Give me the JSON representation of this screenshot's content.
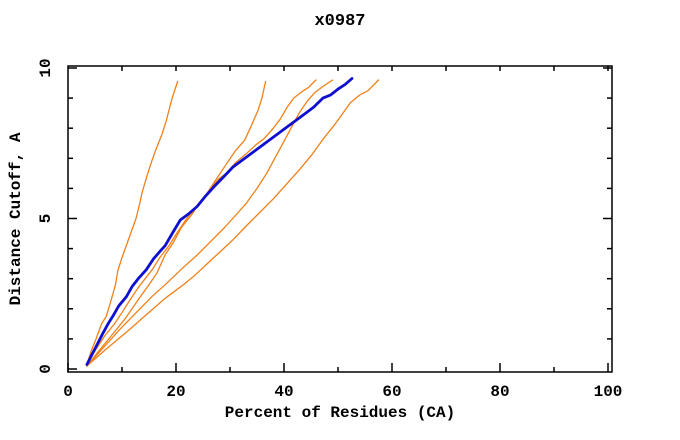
{
  "chart_data": {
    "type": "line",
    "title": "x0987",
    "xlabel": "Percent of Residues (CA)",
    "ylabel": "Distance Cutoff, A",
    "xlim": [
      0,
      100
    ],
    "ylim": [
      0,
      10
    ],
    "x_major_ticks": [
      0,
      20,
      40,
      60,
      80,
      100
    ],
    "x_minor_ticks": [
      10,
      30,
      50,
      70,
      90
    ],
    "y_major_ticks": [
      0,
      5,
      10
    ],
    "y_minor_ticks": [
      1,
      2,
      3,
      4,
      6,
      7,
      8,
      9
    ],
    "grid": false,
    "legend_position": "none",
    "colors": {
      "model_curve": "#f08019",
      "highlight_curve": "#0f0fd0",
      "axis": "#000000",
      "background": "#ffffff"
    },
    "series": [
      {
        "name": "model-curve-1",
        "role": "model",
        "points": [
          [
            3.5,
            0.15
          ],
          [
            4.3,
            0.6
          ],
          [
            5.2,
            1.0
          ],
          [
            6.2,
            1.5
          ],
          [
            7.1,
            1.75
          ],
          [
            8.0,
            2.3
          ],
          [
            8.8,
            2.8
          ],
          [
            9.2,
            3.25
          ],
          [
            10.0,
            3.7
          ],
          [
            10.8,
            4.1
          ],
          [
            11.8,
            4.6
          ],
          [
            12.6,
            5.0
          ],
          [
            13.3,
            5.5
          ],
          [
            13.7,
            5.85
          ],
          [
            14.6,
            6.4
          ],
          [
            15.6,
            6.95
          ],
          [
            16.4,
            7.35
          ],
          [
            17.4,
            7.8
          ],
          [
            18.2,
            8.25
          ],
          [
            18.7,
            8.6
          ],
          [
            19.3,
            9.0
          ],
          [
            20.3,
            9.55
          ]
        ]
      },
      {
        "name": "model-curve-2",
        "role": "model",
        "points": [
          [
            3.5,
            0.15
          ],
          [
            5.0,
            0.6
          ],
          [
            6.8,
            1.1
          ],
          [
            8.6,
            1.5
          ],
          [
            10.1,
            1.9
          ],
          [
            11.5,
            2.3
          ],
          [
            13.0,
            2.7
          ],
          [
            14.5,
            3.05
          ],
          [
            15.6,
            3.3
          ],
          [
            17.0,
            3.7
          ],
          [
            18.7,
            4.1
          ],
          [
            20.3,
            4.55
          ],
          [
            22.0,
            5.0
          ],
          [
            24.0,
            5.45
          ],
          [
            25.8,
            5.85
          ],
          [
            27.8,
            6.4
          ],
          [
            29.3,
            6.8
          ],
          [
            31.0,
            7.25
          ],
          [
            32.7,
            7.6
          ],
          [
            34.0,
            8.1
          ],
          [
            35.2,
            8.6
          ],
          [
            35.9,
            9.0
          ],
          [
            36.6,
            9.55
          ]
        ]
      },
      {
        "name": "model-curve-3",
        "role": "model",
        "points": [
          [
            3.5,
            0.1
          ],
          [
            5.5,
            0.55
          ],
          [
            8.0,
            1.1
          ],
          [
            10.5,
            1.65
          ],
          [
            13.0,
            2.3
          ],
          [
            15.0,
            2.8
          ],
          [
            16.5,
            3.2
          ],
          [
            18.0,
            3.8
          ],
          [
            19.5,
            4.2
          ],
          [
            21.0,
            4.7
          ],
          [
            22.8,
            5.1
          ],
          [
            24.3,
            5.5
          ],
          [
            26.0,
            5.9
          ],
          [
            27.8,
            6.3
          ],
          [
            29.3,
            6.5
          ],
          [
            31.0,
            6.85
          ],
          [
            33.0,
            7.15
          ],
          [
            34.8,
            7.45
          ],
          [
            36.3,
            7.65
          ],
          [
            37.8,
            7.95
          ],
          [
            39.3,
            8.3
          ],
          [
            40.6,
            8.7
          ],
          [
            41.8,
            9.0
          ],
          [
            43.2,
            9.2
          ],
          [
            44.5,
            9.35
          ],
          [
            45.9,
            9.6
          ]
        ]
      },
      {
        "name": "model-curve-4",
        "role": "model",
        "points": [
          [
            3.5,
            0.1
          ],
          [
            6.5,
            0.7
          ],
          [
            9.5,
            1.3
          ],
          [
            12.5,
            1.85
          ],
          [
            15.5,
            2.4
          ],
          [
            18.0,
            2.8
          ],
          [
            21.5,
            3.4
          ],
          [
            24.0,
            3.8
          ],
          [
            26.5,
            4.25
          ],
          [
            29.0,
            4.7
          ],
          [
            31.0,
            5.1
          ],
          [
            33.0,
            5.5
          ],
          [
            35.0,
            6.0
          ],
          [
            36.8,
            6.5
          ],
          [
            38.3,
            7.0
          ],
          [
            39.8,
            7.5
          ],
          [
            41.3,
            8.0
          ],
          [
            42.8,
            8.5
          ],
          [
            44.3,
            8.9
          ],
          [
            45.8,
            9.2
          ],
          [
            47.3,
            9.4
          ],
          [
            49.0,
            9.6
          ]
        ]
      },
      {
        "name": "model-curve-5",
        "role": "model",
        "points": [
          [
            3.5,
            0.1
          ],
          [
            7.0,
            0.65
          ],
          [
            11.0,
            1.25
          ],
          [
            14.5,
            1.8
          ],
          [
            18.0,
            2.35
          ],
          [
            21.0,
            2.75
          ],
          [
            23.4,
            3.1
          ],
          [
            25.8,
            3.5
          ],
          [
            28.2,
            3.9
          ],
          [
            30.6,
            4.3
          ],
          [
            33.0,
            4.75
          ],
          [
            35.5,
            5.2
          ],
          [
            38.0,
            5.65
          ],
          [
            40.5,
            6.15
          ],
          [
            43.0,
            6.65
          ],
          [
            45.3,
            7.15
          ],
          [
            47.3,
            7.65
          ],
          [
            49.3,
            8.1
          ],
          [
            50.9,
            8.5
          ],
          [
            52.3,
            8.85
          ],
          [
            54.0,
            9.1
          ],
          [
            55.6,
            9.25
          ],
          [
            57.5,
            9.6
          ]
        ]
      },
      {
        "name": "highlight-curve",
        "role": "highlight",
        "points": [
          [
            3.5,
            0.15
          ],
          [
            4.5,
            0.5
          ],
          [
            5.5,
            0.85
          ],
          [
            6.5,
            1.2
          ],
          [
            7.4,
            1.5
          ],
          [
            8.3,
            1.75
          ],
          [
            9.4,
            2.1
          ],
          [
            10.8,
            2.4
          ],
          [
            11.9,
            2.75
          ],
          [
            13.0,
            3.0
          ],
          [
            14.5,
            3.3
          ],
          [
            15.8,
            3.65
          ],
          [
            17.0,
            3.9
          ],
          [
            18.0,
            4.1
          ],
          [
            19.3,
            4.5
          ],
          [
            20.8,
            4.95
          ],
          [
            22.3,
            5.15
          ],
          [
            23.9,
            5.4
          ],
          [
            25.5,
            5.75
          ],
          [
            27.0,
            6.05
          ],
          [
            28.9,
            6.4
          ],
          [
            30.5,
            6.7
          ],
          [
            32.0,
            6.9
          ],
          [
            33.5,
            7.1
          ],
          [
            35.0,
            7.3
          ],
          [
            36.5,
            7.5
          ],
          [
            38.0,
            7.7
          ],
          [
            39.5,
            7.9
          ],
          [
            41.0,
            8.1
          ],
          [
            42.5,
            8.3
          ],
          [
            44.0,
            8.5
          ],
          [
            45.5,
            8.7
          ],
          [
            47.2,
            9.0
          ],
          [
            48.6,
            9.1
          ],
          [
            50.0,
            9.3
          ],
          [
            51.3,
            9.45
          ],
          [
            52.6,
            9.65
          ]
        ]
      }
    ]
  }
}
